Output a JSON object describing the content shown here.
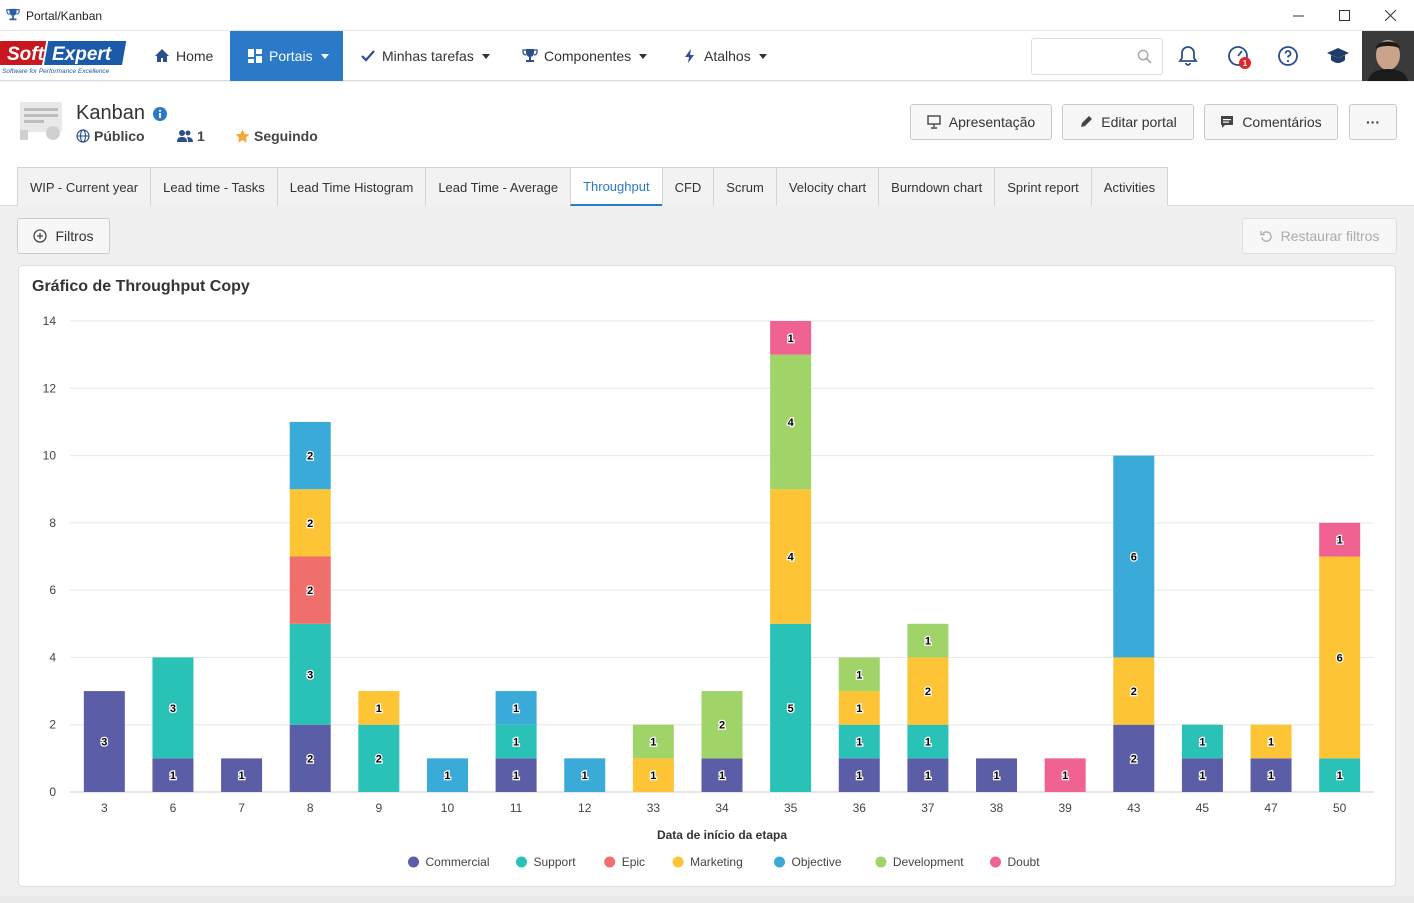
{
  "window": {
    "title": "Portal/Kanban"
  },
  "nav": {
    "home": "Home",
    "portais": "Portais",
    "tasks": "Minhas tarefas",
    "components": "Componentes",
    "shortcuts": "Atalhos",
    "search_placeholder": "",
    "notification_badge": "1"
  },
  "logo": {
    "soft": "Soft",
    "expert": "Expert",
    "tagline": "Software for Performance Excellence"
  },
  "portal": {
    "title": "Kanban",
    "visibility": "Público",
    "members": "1",
    "following": "Seguindo",
    "buttons": {
      "presentation": "Apresentação",
      "edit": "Editar portal",
      "comments": "Comentários",
      "more": "···"
    }
  },
  "tabs": [
    "WIP - Current year",
    "Lead time - Tasks",
    "Lead Time Histogram",
    "Lead Time - Average",
    "Throughput",
    "CFD",
    "Scrum",
    "Velocity chart",
    "Burndown chart",
    "Sprint report",
    "Activities"
  ],
  "active_tab": "Throughput",
  "filters": {
    "filters_label": "Filtros",
    "reset_label": "Restaurar filtros"
  },
  "colors": {
    "primary": "#2a7ac7",
    "Commercial": "#5b5ea6",
    "Support": "#2ac1b7",
    "Epic": "#ef6f6c",
    "Marketing": "#fdc535",
    "Objective": "#3aaad9",
    "Development": "#a0d468",
    "Doubt": "#f06292"
  },
  "chart_data": {
    "type": "bar",
    "stacked": true,
    "title": "Gráfico de Throughput Copy",
    "xlabel": "Data de início da etapa",
    "ylabel": "",
    "ylim": [
      0,
      14
    ],
    "yticks": [
      0,
      2,
      4,
      6,
      8,
      10,
      12,
      14
    ],
    "grid": true,
    "legend_position": "bottom",
    "categories": [
      "3",
      "6",
      "7",
      "8",
      "9",
      "10",
      "11",
      "12",
      "33",
      "34",
      "35",
      "36",
      "37",
      "38",
      "39",
      "43",
      "45",
      "47",
      "50"
    ],
    "series": [
      {
        "name": "Commercial",
        "values": [
          3,
          1,
          1,
          2,
          0,
          0,
          1,
          0,
          0,
          1,
          0,
          1,
          1,
          1,
          0,
          2,
          1,
          1,
          0
        ]
      },
      {
        "name": "Support",
        "values": [
          0,
          3,
          0,
          3,
          2,
          0,
          1,
          0,
          0,
          0,
          5,
          1,
          1,
          0,
          0,
          0,
          1,
          0,
          1
        ]
      },
      {
        "name": "Epic",
        "values": [
          0,
          0,
          0,
          2,
          0,
          0,
          0,
          0,
          0,
          0,
          0,
          0,
          0,
          0,
          0,
          0,
          0,
          0,
          0
        ]
      },
      {
        "name": "Marketing",
        "values": [
          0,
          0,
          0,
          2,
          1,
          0,
          0,
          0,
          1,
          0,
          4,
          1,
          2,
          0,
          0,
          2,
          0,
          1,
          6
        ]
      },
      {
        "name": "Objective",
        "values": [
          0,
          0,
          0,
          2,
          0,
          1,
          1,
          1,
          0,
          0,
          0,
          0,
          0,
          0,
          0,
          6,
          0,
          0,
          0
        ]
      },
      {
        "name": "Development",
        "values": [
          0,
          0,
          0,
          0,
          0,
          0,
          0,
          0,
          1,
          2,
          4,
          1,
          1,
          0,
          0,
          0,
          0,
          0,
          0
        ]
      },
      {
        "name": "Doubt",
        "values": [
          0,
          0,
          0,
          0,
          0,
          0,
          0,
          0,
          0,
          0,
          1,
          0,
          0,
          0,
          1,
          0,
          0,
          0,
          1
        ]
      }
    ]
  }
}
